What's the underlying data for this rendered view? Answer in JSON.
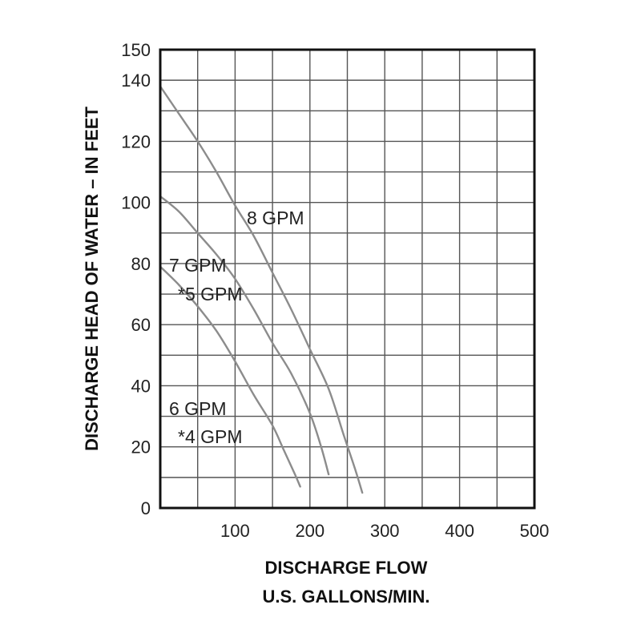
{
  "chart_data": {
    "type": "line",
    "xlabel": [
      "DISCHARGE FLOW",
      "U.S. GALLONS/MIN."
    ],
    "ylabel": "DISCHARGE HEAD OF WATER – IN FEET",
    "xlim": [
      0,
      500
    ],
    "ylim": [
      0,
      150
    ],
    "x_ticks": [
      "100",
      "200",
      "300",
      "400",
      "500"
    ],
    "y_ticks": [
      "0",
      "20",
      "40",
      "60",
      "80",
      "100",
      "120",
      "140",
      "150"
    ],
    "grid": true,
    "series": [
      {
        "name": "6 GPM / *4 GPM",
        "points": [
          [
            0,
            79
          ],
          [
            25,
            73
          ],
          [
            50,
            66
          ],
          [
            75,
            58
          ],
          [
            100,
            48
          ],
          [
            125,
            37
          ],
          [
            150,
            27
          ],
          [
            165,
            19
          ],
          [
            180,
            11
          ],
          [
            187,
            7
          ]
        ]
      },
      {
        "name": "7 GPM / *5 GPM",
        "points": [
          [
            0,
            102
          ],
          [
            25,
            97
          ],
          [
            50,
            90
          ],
          [
            75,
            83
          ],
          [
            100,
            75
          ],
          [
            125,
            65
          ],
          [
            150,
            54
          ],
          [
            175,
            44
          ],
          [
            200,
            31
          ],
          [
            215,
            20
          ],
          [
            225,
            11
          ]
        ]
      },
      {
        "name": "8 GPM",
        "points": [
          [
            0,
            138
          ],
          [
            25,
            129
          ],
          [
            50,
            120
          ],
          [
            75,
            110
          ],
          [
            100,
            99
          ],
          [
            125,
            89
          ],
          [
            150,
            77
          ],
          [
            175,
            65
          ],
          [
            200,
            52
          ],
          [
            225,
            39
          ],
          [
            245,
            24
          ],
          [
            260,
            13
          ],
          [
            270,
            5
          ]
        ]
      }
    ],
    "annotations": [
      "8 GPM",
      "7 GPM",
      "*5 GPM",
      "6 GPM",
      "*4 GPM"
    ]
  }
}
